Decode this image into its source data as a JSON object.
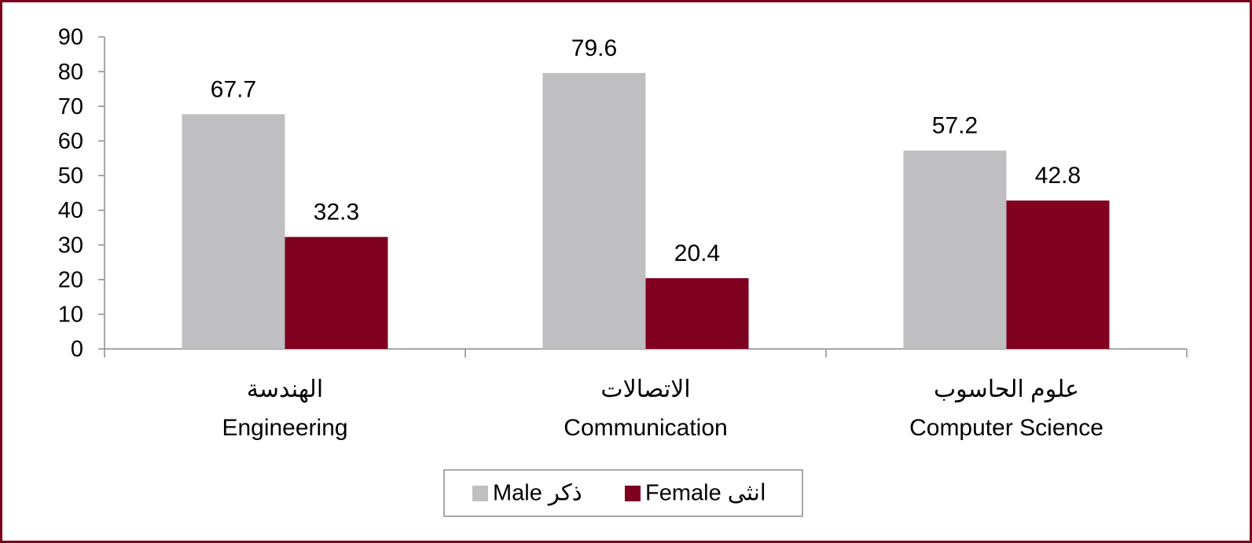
{
  "chart_data": {
    "type": "bar",
    "categories": [
      [
        "الهندسة",
        "Engineering"
      ],
      [
        "الاتصالات",
        "Communication"
      ],
      [
        "علوم الحاسوب",
        "Computer Science"
      ]
    ],
    "series": [
      {
        "name": "Male ذكر",
        "color": "#bfbfc1",
        "values": [
          67.7,
          79.6,
          57.2
        ]
      },
      {
        "name": "Female انثى",
        "color": "#800020",
        "values": [
          32.3,
          20.4,
          42.8
        ]
      }
    ],
    "ylim": [
      0,
      90
    ],
    "yticks": [
      0,
      10,
      20,
      30,
      40,
      50,
      60,
      70,
      80,
      90
    ],
    "grid": false,
    "legend": "bottom"
  }
}
